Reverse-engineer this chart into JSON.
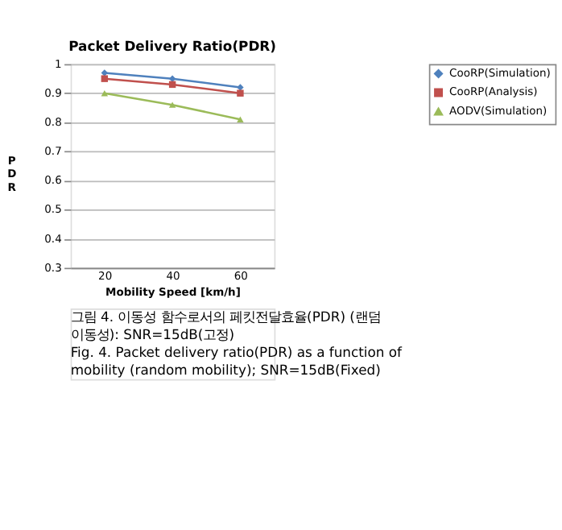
{
  "chart_data": {
    "type": "line",
    "title": "Packet Delivery Ratio(PDR)",
    "xlabel": "Mobility Speed [km/h]",
    "ylabel": "PDR",
    "categories": [
      "20",
      "40",
      "60"
    ],
    "series": [
      {
        "name": "CooRP(Simulation)",
        "color": "#4f81bd",
        "marker": "diamond",
        "values": [
          0.97,
          0.95,
          0.92
        ]
      },
      {
        "name": "CooRP(Analysis)",
        "color": "#c0504d",
        "marker": "square",
        "values": [
          0.95,
          0.93,
          0.9
        ]
      },
      {
        "name": "AODV(Simulation)",
        "color": "#9bbb59",
        "marker": "triangle",
        "values": [
          0.9,
          0.86,
          0.81
        ]
      }
    ],
    "ylim": [
      0.3,
      1
    ],
    "yticks": [
      0.3,
      0.4,
      0.5,
      0.6,
      0.7,
      0.8,
      0.9,
      1
    ],
    "grid": "y",
    "legend": "right",
    "line_style": "solid",
    "annotations": [
      "그림 4. 이동성 함수로서의 페킷전달효율(PDR) (랜덤 이동성): SNR=15dB(고정)",
      "Fig. 4. Packet delivery ratio(PDR) as a function of mobility (random mobility); SNR=15dB(Fixed)"
    ]
  }
}
